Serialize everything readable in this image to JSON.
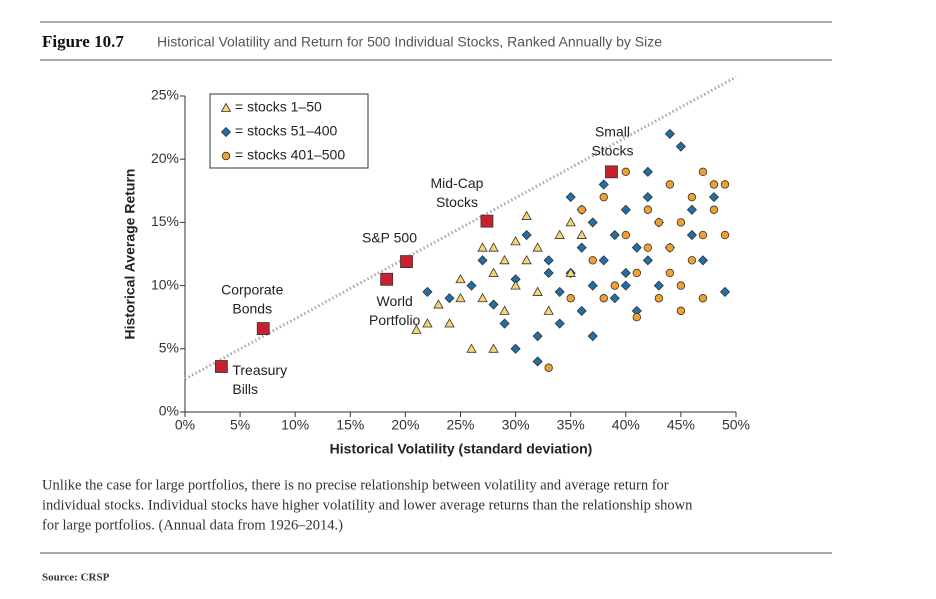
{
  "figure": {
    "number": "Figure 10.7",
    "caption": [
      "Unlike the case for large portfolios, there is no precise relationship between volatility and average return for",
      "individual stocks. Individual stocks have higher volatility and lower average returns than the relationship shown",
      "for large portfolios. (Annual data from 1926–2014.)"
    ],
    "source": "Source: CRSP"
  },
  "chart_data": {
    "type": "scatter",
    "title": "Historical Volatility and Return for 500 Individual Stocks, Ranked Annually by Size",
    "x_label": "Historical Volatility (standard deviation)",
    "y_label": "Historical Average Return",
    "xlim": [
      0,
      50
    ],
    "ylim": [
      0,
      25
    ],
    "xticks": [
      {
        "value": 0,
        "label": "0%"
      },
      {
        "value": 5,
        "label": "5%"
      },
      {
        "value": 10,
        "label": "10%"
      },
      {
        "value": 15,
        "label": "15%"
      },
      {
        "value": 20,
        "label": "20%"
      },
      {
        "value": 25,
        "label": "25%"
      },
      {
        "value": 30,
        "label": "30%"
      },
      {
        "value": 35,
        "label": "35%"
      },
      {
        "value": 40,
        "label": "40%"
      },
      {
        "value": 45,
        "label": "45%"
      },
      {
        "value": 50,
        "label": "50%"
      }
    ],
    "yticks": [
      {
        "value": 0,
        "label": "0%"
      },
      {
        "value": 5,
        "label": "5%"
      },
      {
        "value": 10,
        "label": "10%"
      },
      {
        "value": 15,
        "label": "15%"
      },
      {
        "value": 20,
        "label": "20%"
      },
      {
        "value": 25,
        "label": "25%"
      }
    ],
    "legend": "upper left",
    "series": [
      {
        "name": "= stocks 51–400",
        "marker": "diamond",
        "color": "#1f6fa8",
        "x": [
          22,
          24,
          26,
          27,
          28,
          29,
          30,
          31,
          32,
          33,
          34,
          35,
          35,
          36,
          36,
          37,
          37,
          38,
          38,
          39,
          39,
          40,
          40,
          41,
          41,
          42,
          42,
          43,
          43,
          44,
          45,
          46,
          47,
          48,
          49,
          44,
          30,
          32,
          34,
          37,
          40,
          42,
          46,
          33,
          36
        ],
        "values": [
          9.5,
          9,
          10,
          12,
          8.5,
          7,
          10.5,
          14,
          6,
          12,
          9.5,
          17,
          11,
          13,
          8,
          15,
          10,
          18,
          12,
          14,
          9,
          16,
          11,
          13,
          8,
          17,
          12,
          15,
          10,
          13,
          21,
          16,
          12,
          17,
          9.5,
          22,
          5,
          4,
          7,
          6,
          10,
          19,
          14,
          11,
          16
        ]
      },
      {
        "name": "= stocks 401–500",
        "marker": "circle",
        "color": "#f0a030",
        "x": [
          33,
          35,
          37,
          38,
          39,
          40,
          41,
          42,
          43,
          43,
          44,
          44,
          45,
          45,
          46,
          46,
          47,
          47,
          48,
          48,
          49,
          49,
          40,
          42,
          36,
          44,
          38,
          47,
          45,
          41
        ],
        "values": [
          3.5,
          9,
          12,
          17,
          10,
          14,
          11,
          16,
          15,
          9,
          18,
          13,
          8,
          15,
          17,
          12,
          19,
          14,
          18,
          16,
          14,
          18,
          19,
          13,
          16,
          11,
          9,
          9,
          10,
          7.5
        ]
      },
      {
        "name": "= stocks 1–50",
        "marker": "triangle",
        "color": "#f5d76e",
        "x": [
          21,
          22,
          23,
          25,
          25,
          26,
          27,
          27,
          28,
          28,
          29,
          29,
          30,
          30,
          31,
          31,
          32,
          32,
          33,
          34,
          35,
          35,
          36,
          24,
          28
        ],
        "values": [
          6.5,
          7,
          8.5,
          9,
          10.5,
          5,
          13,
          9,
          11,
          13,
          12,
          8,
          13.5,
          10,
          12,
          15.5,
          9.5,
          13,
          8,
          14,
          11,
          15,
          14,
          7,
          5
        ]
      }
    ],
    "frontier": {
      "x": [
        0,
        50
      ],
      "values": [
        2.6,
        26.5
      ]
    },
    "portfolios": [
      {
        "label": [
          "Treasury",
          "Bills"
        ],
        "x": 3.3,
        "value": 3.6
      },
      {
        "label": [
          "Corporate",
          "Bonds"
        ],
        "x": 7.1,
        "value": 6.6
      },
      {
        "label": [
          "World",
          "Portfolio"
        ],
        "x": 18.3,
        "value": 10.5
      },
      {
        "label": [
          "S&P 500"
        ],
        "x": 20.1,
        "value": 11.9
      },
      {
        "label": [
          "Mid-Cap",
          "Stocks"
        ],
        "x": 27.4,
        "value": 15.1
      },
      {
        "label": [
          "Small",
          "Stocks"
        ],
        "x": 38.7,
        "value": 19.0
      }
    ]
  }
}
